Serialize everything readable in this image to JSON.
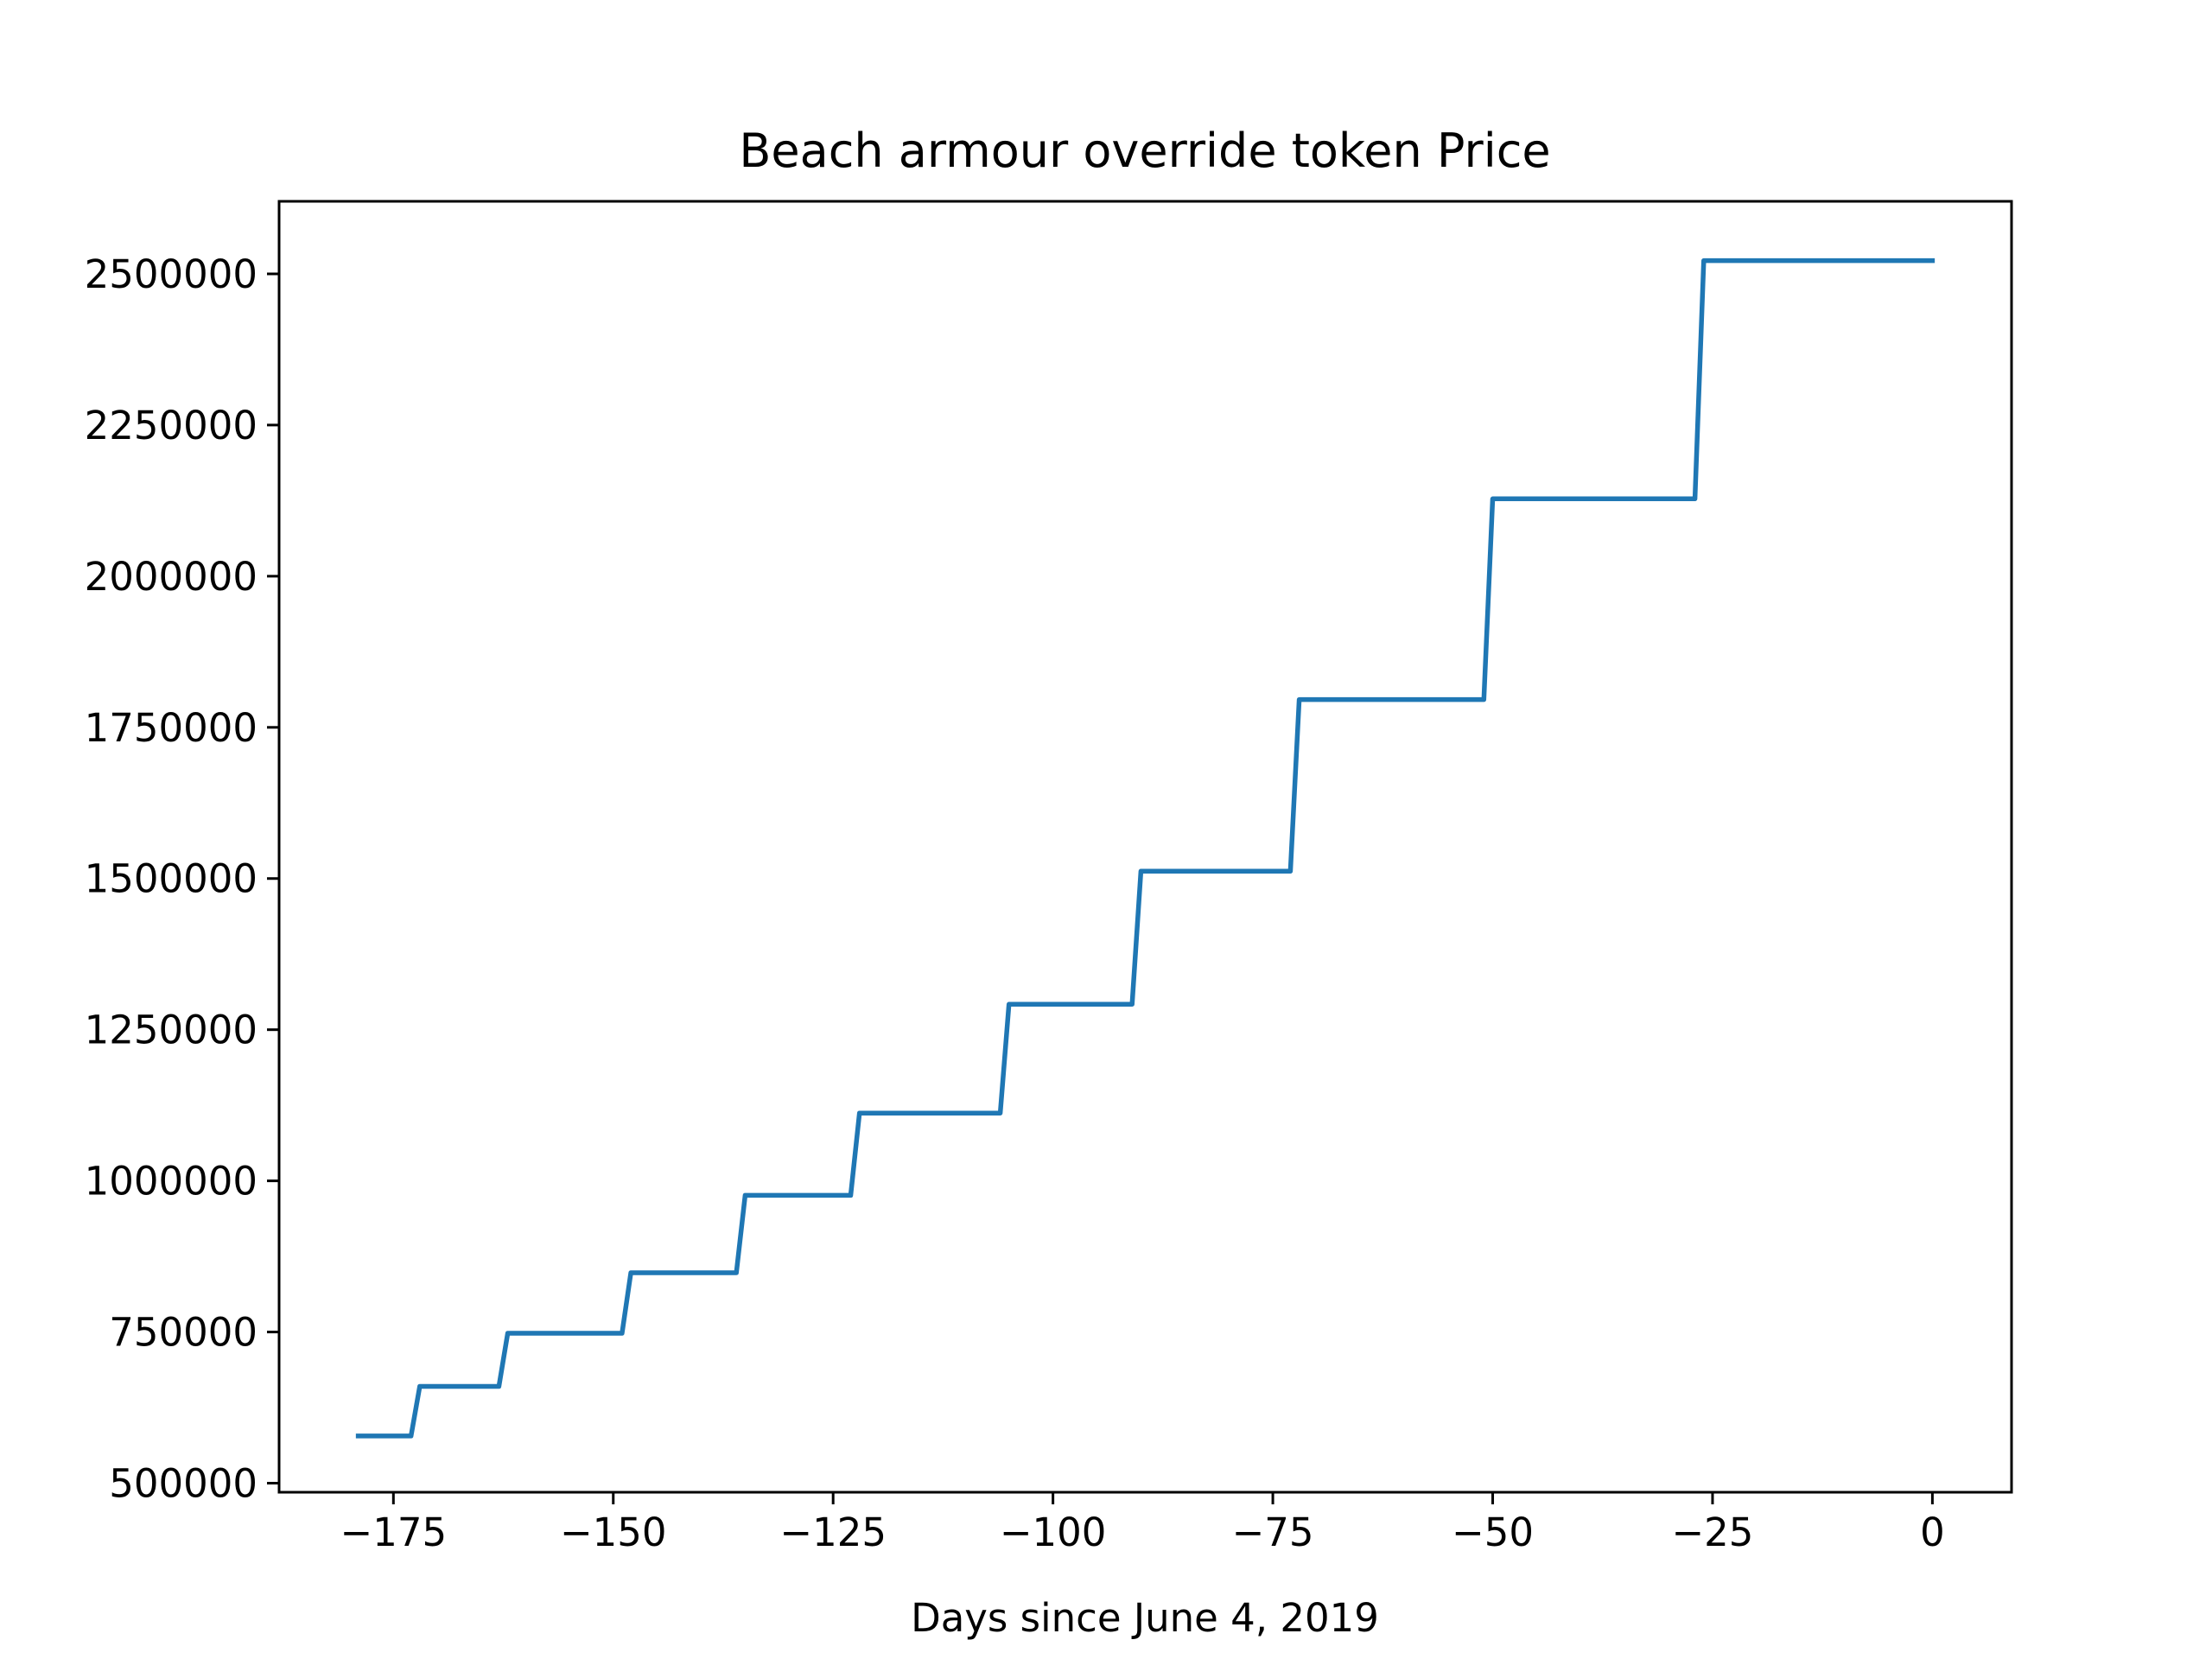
{
  "chart_data": {
    "type": "line",
    "title": "Beach armour override token Price",
    "xlabel": "Days since June 4, 2019",
    "ylabel": "",
    "xlim": [
      -188,
      9
    ],
    "ylim": [
      485000,
      2620000
    ],
    "xticks": [
      -175,
      -150,
      -125,
      -100,
      -75,
      -50,
      -25,
      0
    ],
    "xtick_labels": [
      "−175",
      "−150",
      "−125",
      "−100",
      "−75",
      "−50",
      "−25",
      "0"
    ],
    "yticks": [
      500000,
      750000,
      1000000,
      1250000,
      1500000,
      1750000,
      2000000,
      2250000,
      2500000
    ],
    "ytick_labels": [
      "500000",
      "750000",
      "1000000",
      "1250000",
      "1500000",
      "1750000",
      "2000000",
      "2250000",
      "2500000"
    ],
    "grid": false,
    "legend": "none",
    "series": [
      {
        "color": "#1f77b4",
        "x": [
          -179,
          -173,
          -172,
          -163,
          -162,
          -149,
          -148,
          -136,
          -135,
          -123,
          -122,
          -106,
          -105,
          -91,
          -90,
          -73,
          -72,
          -51,
          -50,
          -27,
          -26,
          0
        ],
        "y": [
          578000,
          578000,
          660000,
          660000,
          748000,
          748000,
          848000,
          848000,
          976000,
          976000,
          1112000,
          1112000,
          1292000,
          1292000,
          1512000,
          1512000,
          1796000,
          1796000,
          2128000,
          2128000,
          2522000,
          2522000
        ]
      }
    ]
  }
}
